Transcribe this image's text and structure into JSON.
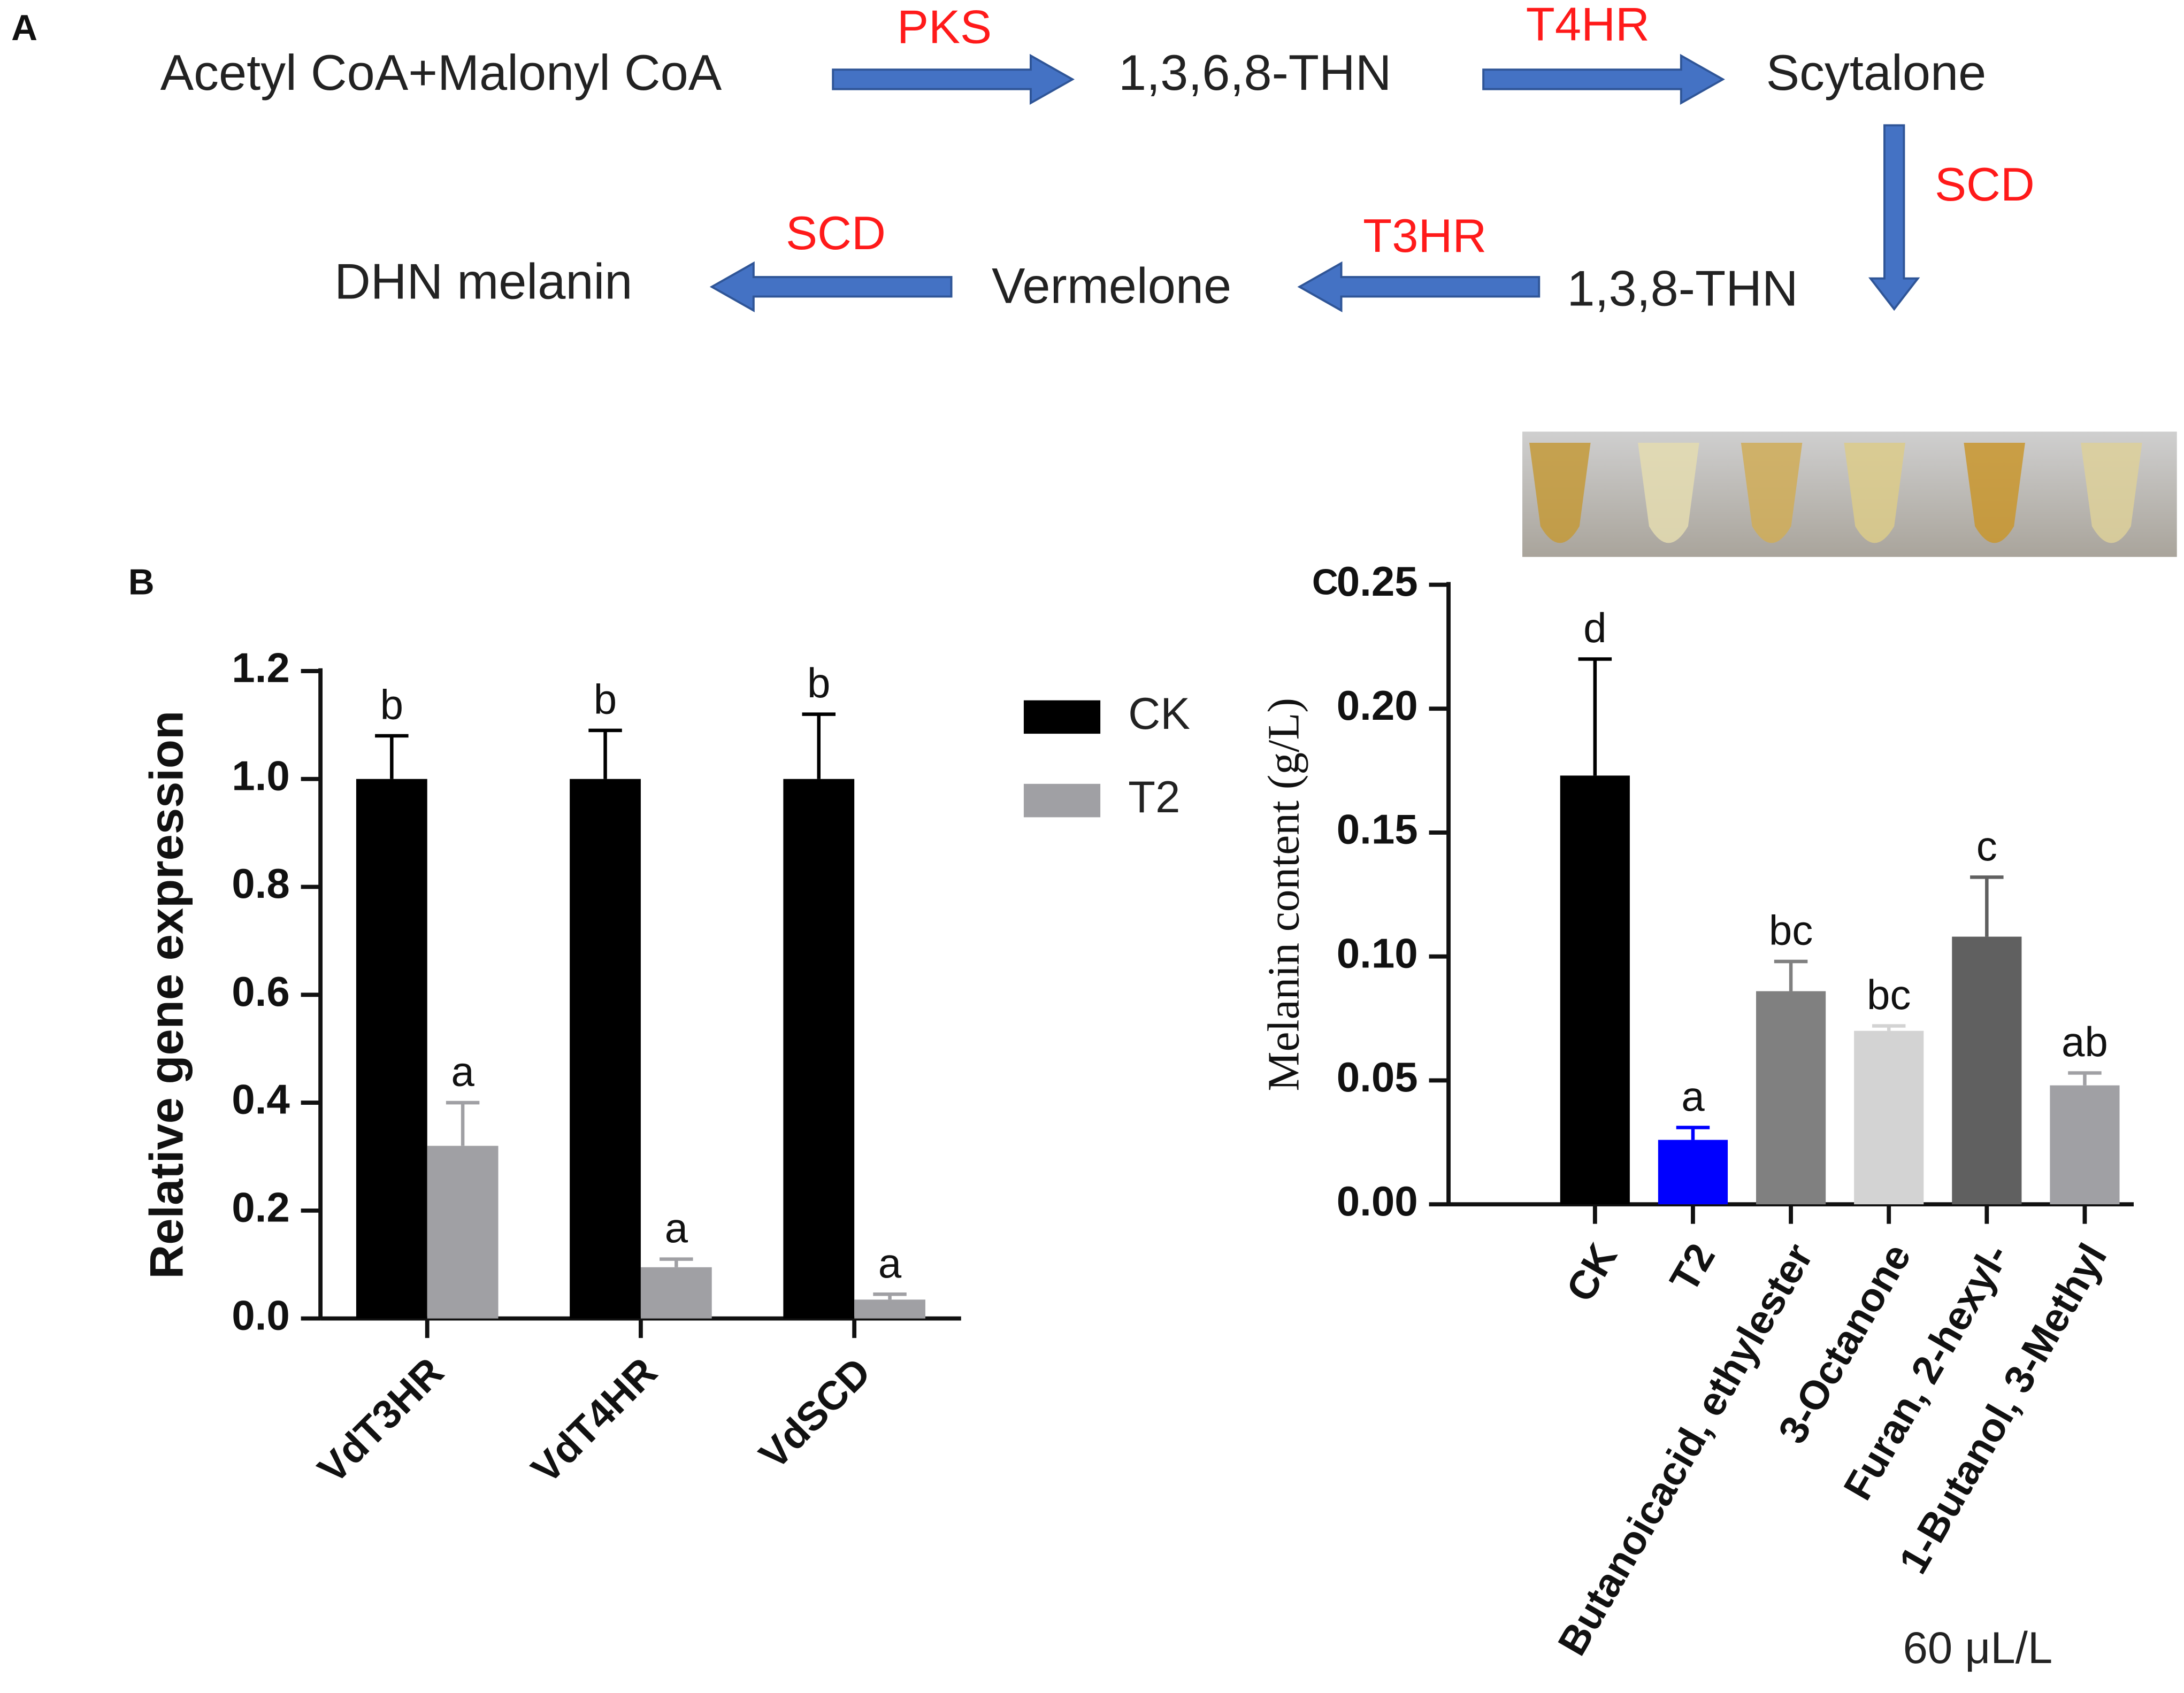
{
  "panels": [
    "A",
    "B",
    "C"
  ],
  "diagram": {
    "nodes": [
      "Acetyl CoA+Malonyl CoA",
      "1,3,6,8-THN",
      "Scytalone",
      "1,3,8-THN",
      "Vermelone",
      "DHN melanin"
    ],
    "enzymes": [
      "PKS",
      "T4HR",
      "SCD",
      "T3HR",
      "SCD"
    ]
  },
  "chart_data": [
    {
      "type": "grouped_bar",
      "ylabel": "Relative gene expression",
      "categories": [
        "VdT3HR",
        "VdT4HR",
        "VdSCD"
      ],
      "series": [
        {
          "name": "CK",
          "color": "#000000",
          "values": [
            1.0,
            1.0,
            1.0
          ],
          "errors": [
            0.08,
            0.09,
            0.12
          ],
          "letters": [
            "b",
            "b",
            "b"
          ]
        },
        {
          "name": "T2",
          "color": "#a0a0a4",
          "values": [
            0.32,
            0.095,
            0.035
          ],
          "errors": [
            0.08,
            0.015,
            0.01
          ],
          "letters": [
            "a",
            "a",
            "a"
          ]
        }
      ],
      "ylim": [
        0,
        1.2
      ],
      "yticks": [
        {
          "value": 0,
          "label": "0.0"
        },
        0.2,
        0.4,
        0.6,
        0.8,
        {
          "value": 1,
          "label": "1.0"
        },
        1.2
      ],
      "legend": "right"
    },
    {
      "type": "bar",
      "ylabel": "Melanin content (g/L)",
      "categories": [
        "CK",
        "T2",
        "Butanoicacid, ethylester",
        "3-Octanone",
        "Furan, 2-hexyl-",
        "1-Butanol, 3-Methyl"
      ],
      "values": [
        0.173,
        0.026,
        0.086,
        0.07,
        0.108,
        0.048
      ],
      "errors": [
        0.047,
        0.005,
        0.012,
        0.002,
        0.024,
        0.005
      ],
      "letters": [
        "d",
        "a",
        "bc",
        "bc",
        "c",
        "ab"
      ],
      "colors": [
        "#000000",
        "#0000ff",
        "#808080",
        "#d3d3d3",
        "#606060",
        "#a0a0a4"
      ],
      "ylim": [
        0,
        0.25
      ],
      "yticks": [
        {
          "value": 0,
          "label": "0.00"
        },
        {
          "value": 0.05,
          "label": "0.05"
        },
        {
          "value": 0.1,
          "label": "0.10"
        },
        {
          "value": 0.15,
          "label": "0.15"
        },
        {
          "value": 0.2,
          "label": "0.20"
        },
        {
          "value": 0.25,
          "label": "0.25"
        }
      ],
      "note": "60 μL/L"
    }
  ]
}
